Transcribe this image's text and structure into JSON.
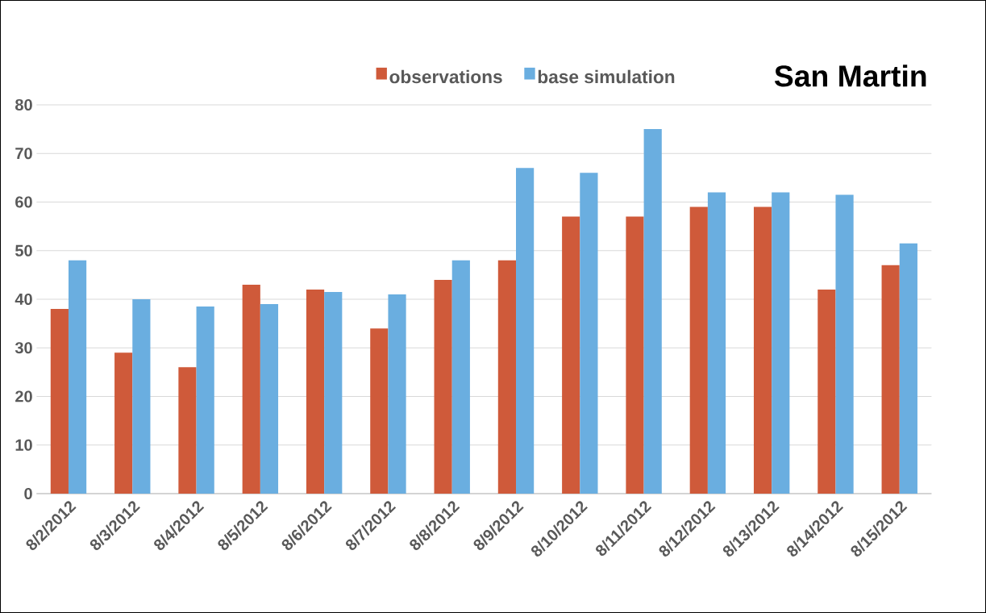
{
  "chart_data": {
    "type": "bar",
    "title": "San Martin",
    "categories": [
      "8/2/2012",
      "8/3/2012",
      "8/4/2012",
      "8/5/2012",
      "8/6/2012",
      "8/7/2012",
      "8/8/2012",
      "8/9/2012",
      "8/10/2012",
      "8/11/2012",
      "8/12/2012",
      "8/13/2012",
      "8/14/2012",
      "8/15/2012"
    ],
    "series": [
      {
        "name": "observations",
        "color": "#cf5a3a",
        "values": [
          38,
          29,
          26,
          43,
          42,
          34,
          44,
          48,
          57,
          57,
          59,
          59,
          42,
          47
        ]
      },
      {
        "name": "base simulation",
        "color": "#6aaee0",
        "values": [
          48,
          40,
          38.5,
          39,
          41.5,
          41,
          48,
          67,
          66,
          75,
          62,
          62,
          61.5,
          51.5
        ]
      }
    ],
    "ylim": [
      0,
      80
    ],
    "yticks": [
      0,
      10,
      20,
      30,
      40,
      50,
      60,
      70,
      80
    ],
    "grid": "y",
    "legend": "top"
  }
}
